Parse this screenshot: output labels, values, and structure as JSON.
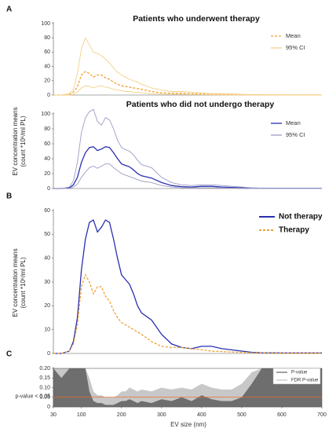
{
  "chart_data": [
    {
      "type": "line",
      "panel": "A",
      "title": "Patients who underwent therapy",
      "y_label": [
        "EV concentration means",
        "(count *10⁶/ml PL)"
      ],
      "x": [
        30,
        50,
        70,
        80,
        90,
        100,
        110,
        120,
        130,
        140,
        150,
        160,
        170,
        180,
        190,
        200,
        210,
        220,
        230,
        240,
        250,
        275,
        300,
        325,
        350,
        375,
        400,
        425,
        450,
        475,
        500,
        525,
        550,
        600,
        650,
        700
      ],
      "xlim": [
        30,
        700
      ],
      "ylim": [
        0,
        100
      ],
      "yticks": [
        0,
        20,
        40,
        60,
        80,
        100
      ],
      "grid": false,
      "series": [
        {
          "name": "Mean",
          "color": "#f0a030",
          "dash": true,
          "values": [
            0,
            0,
            1,
            4,
            12,
            28,
            33,
            30,
            25,
            28,
            28,
            24,
            22,
            18,
            15,
            13,
            12,
            11,
            10,
            9,
            8,
            5,
            3,
            2.5,
            2.5,
            2,
            1.5,
            1,
            0.8,
            0.6,
            0.5,
            0.3,
            0.2,
            0.1,
            0.1,
            0.1
          ]
        },
        {
          "name": "95% CI",
          "color": "#f5d08a",
          "dash": false,
          "values": [
            0,
            0,
            2,
            8,
            30,
            65,
            80,
            70,
            60,
            58,
            55,
            50,
            45,
            38,
            32,
            28,
            25,
            22,
            20,
            18,
            15,
            10,
            7,
            5,
            5,
            4,
            3,
            2,
            2,
            1.5,
            1,
            0.8,
            0.5,
            0.3,
            0.3,
            0.3
          ],
          "lower": [
            0,
            0,
            0,
            1,
            4,
            10,
            13,
            12,
            10,
            12,
            13,
            11,
            10,
            8,
            7,
            6,
            5,
            5,
            4,
            4,
            3,
            2,
            1,
            1,
            1,
            0.8,
            0.5,
            0.3,
            0.2,
            0.1,
            0.1,
            0,
            0,
            0,
            0,
            0
          ]
        }
      ]
    },
    {
      "type": "line",
      "title": "Patients who did not undergo therapy",
      "x": [
        30,
        50,
        70,
        80,
        90,
        100,
        110,
        120,
        130,
        140,
        150,
        160,
        170,
        180,
        190,
        200,
        210,
        220,
        230,
        240,
        250,
        275,
        300,
        325,
        350,
        375,
        400,
        425,
        450,
        475,
        500,
        525,
        550,
        600,
        650,
        700
      ],
      "xlim": [
        30,
        700
      ],
      "ylim": [
        0,
        100
      ],
      "yticks": [
        0,
        20,
        40,
        60,
        80,
        100
      ],
      "grid": false,
      "series": [
        {
          "name": "Mean",
          "color": "#2a2fb0",
          "dash": false,
          "values": [
            0,
            0,
            1,
            5,
            15,
            35,
            48,
            55,
            56,
            51,
            53,
            56,
            55,
            48,
            40,
            33,
            31,
            29,
            25,
            20,
            17,
            14,
            8,
            4,
            2.5,
            2,
            3,
            3,
            2,
            1.5,
            1,
            0.5,
            0.3,
            0.2,
            0.2,
            0.2
          ]
        },
        {
          "name": "95% CI",
          "color": "#9a9cc4",
          "dash": false,
          "values": [
            0,
            0,
            2,
            10,
            35,
            75,
            95,
            103,
            106,
            90,
            85,
            95,
            92,
            80,
            65,
            55,
            52,
            50,
            45,
            38,
            32,
            28,
            15,
            8,
            5,
            4,
            5,
            5,
            4,
            3,
            2,
            1,
            0.5,
            0.3,
            0.3,
            0.3
          ],
          "lower": [
            0,
            0,
            0,
            2,
            6,
            15,
            22,
            28,
            30,
            27,
            30,
            33,
            33,
            28,
            24,
            20,
            18,
            16,
            14,
            12,
            10,
            8,
            4,
            2,
            1,
            1,
            1,
            1,
            0.8,
            0.5,
            0.3,
            0.2,
            0,
            0,
            0,
            0
          ]
        }
      ]
    },
    {
      "type": "line",
      "panel": "B",
      "y_label": [
        "EV concentration means",
        "(count *10⁶/ml PL)"
      ],
      "x": [
        30,
        50,
        70,
        80,
        90,
        100,
        110,
        120,
        130,
        140,
        150,
        160,
        170,
        180,
        190,
        200,
        210,
        220,
        230,
        240,
        250,
        275,
        300,
        325,
        350,
        375,
        400,
        425,
        450,
        475,
        500,
        525,
        550,
        600,
        650,
        700
      ],
      "xlim": [
        30,
        700
      ],
      "ylim": [
        0,
        60
      ],
      "yticks": [
        0,
        10,
        20,
        30,
        40,
        50,
        60
      ],
      "grid": false,
      "series": [
        {
          "name": "Not therapy",
          "color": "#2a2fb0",
          "dash": false,
          "values": [
            0,
            0,
            1,
            5,
            15,
            35,
            48,
            55,
            56,
            51,
            53,
            56,
            55,
            48,
            40,
            33,
            31,
            29,
            25,
            20,
            17,
            14,
            8,
            4,
            2.5,
            2,
            3,
            3,
            2,
            1.5,
            1,
            0.5,
            0.3,
            0.2,
            0.2,
            0.2
          ]
        },
        {
          "name": "Therapy",
          "color": "#f0a030",
          "dash": true,
          "values": [
            0,
            0,
            1,
            4,
            12,
            28,
            33,
            30,
            25,
            28,
            28,
            24,
            22,
            18,
            15,
            13,
            12,
            11,
            10,
            9,
            8,
            5,
            3,
            2.5,
            2.5,
            2,
            1.5,
            1,
            0.8,
            0.6,
            0.5,
            0.3,
            0.2,
            0.1,
            0.1,
            0.1
          ]
        }
      ]
    },
    {
      "type": "area",
      "panel": "C",
      "x_label": "EV size (nm)",
      "x": [
        30,
        50,
        70,
        80,
        90,
        100,
        110,
        120,
        130,
        140,
        150,
        160,
        170,
        180,
        190,
        200,
        210,
        220,
        230,
        240,
        250,
        275,
        300,
        325,
        350,
        375,
        400,
        425,
        450,
        475,
        500,
        525,
        550,
        600,
        650,
        700
      ],
      "xlim": [
        30,
        700
      ],
      "xticks": [
        30,
        100,
        200,
        300,
        400,
        500,
        600,
        700
      ],
      "ylim": [
        0,
        0.2
      ],
      "yticks": [
        0,
        0.05,
        {
          "value": 0.1,
          "label": "0.10"
        },
        0.15,
        {
          "value": 0.2,
          "label": "0.20"
        }
      ],
      "threshold": 0.05,
      "threshold_label": "p-value < 0.05",
      "threshold_color": "#e07020",
      "series": [
        {
          "name": "FDR P-value",
          "color": "#c8c8c8",
          "values": [
            0.2,
            0.2,
            0.2,
            0.2,
            0.2,
            0.2,
            0.2,
            0.15,
            0.08,
            0.06,
            0.06,
            0.05,
            0.05,
            0.05,
            0.06,
            0.08,
            0.08,
            0.1,
            0.09,
            0.08,
            0.09,
            0.08,
            0.1,
            0.09,
            0.1,
            0.09,
            0.12,
            0.1,
            0.09,
            0.09,
            0.12,
            0.18,
            0.2,
            0.2,
            0.2,
            0.2
          ]
        },
        {
          "name": "P-value",
          "color": "#6e6e6e",
          "values": [
            0.2,
            0.15,
            0.2,
            0.2,
            0.2,
            0.2,
            0.2,
            0.08,
            0.03,
            0.02,
            0.02,
            0.01,
            0.01,
            0.01,
            0.02,
            0.03,
            0.03,
            0.04,
            0.03,
            0.02,
            0.03,
            0.02,
            0.04,
            0.03,
            0.05,
            0.03,
            0.06,
            0.04,
            0.03,
            0.03,
            0.05,
            0.12,
            0.2,
            0.2,
            0.2,
            0.2
          ]
        }
      ]
    }
  ]
}
